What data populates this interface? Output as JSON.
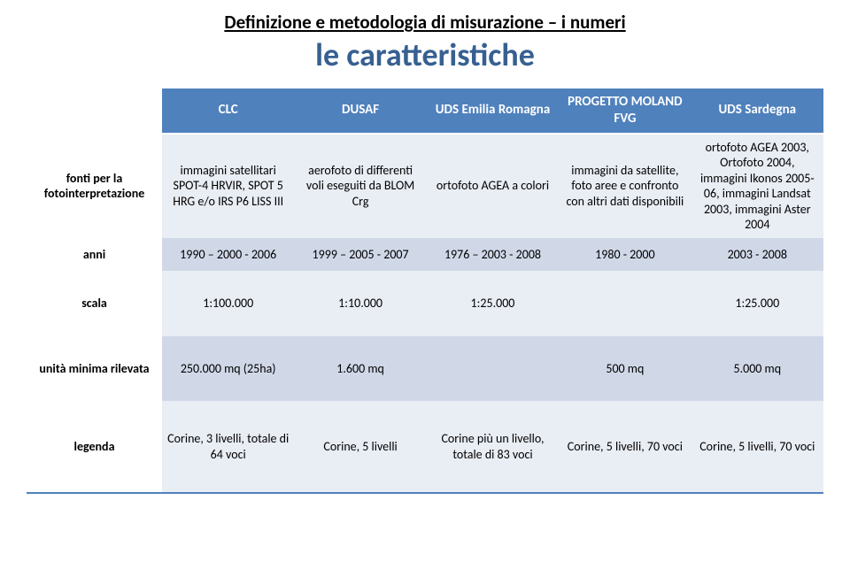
{
  "colors": {
    "title": "#376091",
    "header_bg": "#4f81bd",
    "header_text": "#ffffff",
    "band_light": "#e9edf4",
    "band_dark": "#d0d8e8",
    "text": "#000000",
    "bottom_border": "#4f81bd"
  },
  "typography": {
    "overtitle_size_pt": 16,
    "title_size_pt": 28,
    "cell_size_pt": 11,
    "header_size_pt": 12,
    "font_family": "Calibri"
  },
  "overtitle": "Definizione e metodologia di misurazione – i numeri",
  "title": "le caratteristiche",
  "columns": [
    "",
    "CLC",
    "DUSAF",
    "UDS Emilia Romagna",
    "PROGETTO MOLAND FVG",
    "UDS Sardegna"
  ],
  "rows": [
    {
      "label": "fonti per la fotointerpretazione",
      "cells": [
        "immagini satellitari SPOT-4 HRVIR, SPOT 5 HRG e/o IRS P6 LISS III",
        "aerofoto di differenti voli eseguiti da BLOM Crg",
        "ortofoto AGEA a colori",
        "immagini da satellite, foto aree e confronto con altri dati disponibili",
        "ortofoto AGEA 2003, Ortofoto 2004, immagini Ikonos 2005-06, immagini Landsat 2003, immagini Aster 2004"
      ]
    },
    {
      "label": "anni",
      "cells": [
        "1990 – 2000 - 2006",
        "1999 – 2005 - 2007",
        "1976 – 2003 - 2008",
        "1980 - 2000",
        "2003 - 2008"
      ]
    },
    {
      "label": "scala",
      "cells": [
        "1:100.000",
        "1:10.000",
        "1:25.000",
        "",
        "1:25.000"
      ]
    },
    {
      "label": "unità minima rilevata",
      "cells": [
        "250.000 mq (25ha)",
        "1.600 mq",
        "",
        "500 mq",
        "5.000 mq"
      ]
    },
    {
      "label": "legenda",
      "cells": [
        "Corine, 3 livelli, totale di 64 voci",
        "Corine, 5 livelli",
        "Corine più un livello, totale di 83 voci",
        "Corine, 5 livelli, 70 voci",
        "Corine, 5 livelli, 70 voci"
      ]
    }
  ]
}
